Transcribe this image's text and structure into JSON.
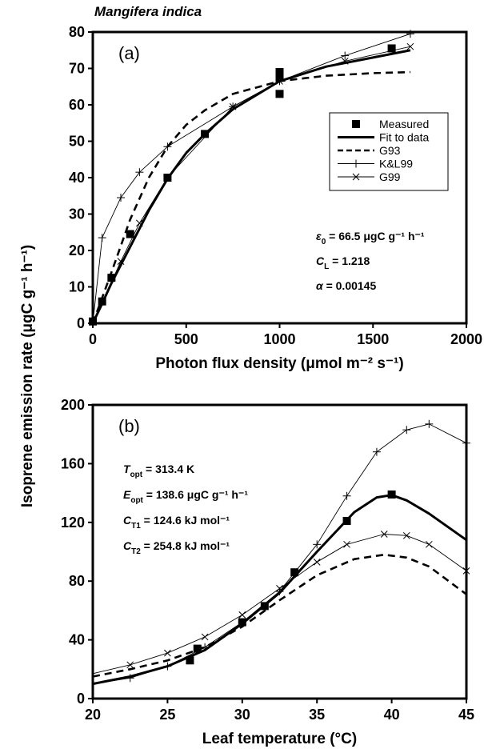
{
  "figure": {
    "species": "Mangifera indica",
    "ylabel": "Isoprene emission rate (μgC g⁻¹ h⁻¹)"
  },
  "chart_data": [
    {
      "type": "line",
      "panel_label": "(a)",
      "xlabel": "Photon flux density (μmol m⁻² s⁻¹)",
      "xlim": [
        0,
        2000
      ],
      "ylim": [
        0,
        80
      ],
      "xticks": [
        "0",
        "500",
        "1000",
        "1500",
        "2000"
      ],
      "yticks": [
        "0",
        "10",
        "20",
        "30",
        "40",
        "50",
        "60",
        "70",
        "80"
      ],
      "grid": false,
      "legend_position": "right",
      "series": [
        {
          "name": "Measured",
          "style": "squares",
          "x": [
            0,
            50,
            100,
            200,
            400,
            600,
            1000,
            1000,
            1000,
            1600
          ],
          "y": [
            0.5,
            6,
            12.5,
            24.5,
            40,
            52,
            69,
            67.5,
            63,
            75.5
          ]
        },
        {
          "name": "Fit to data",
          "style": "thick",
          "x": [
            0,
            50,
            100,
            200,
            300,
            400,
            500,
            600,
            750,
            1000,
            1250,
            1500,
            1700
          ],
          "y": [
            0,
            5.4,
            11,
            21,
            31,
            39.7,
            46.8,
            52,
            58.8,
            66.5,
            70.5,
            73,
            75
          ]
        },
        {
          "name": "G93",
          "style": "dashed",
          "x": [
            0,
            50,
            100,
            200,
            300,
            400,
            500,
            600,
            750,
            1000,
            1250,
            1500,
            1700
          ],
          "y": [
            0,
            7,
            14,
            28.5,
            40,
            48.5,
            54.5,
            58.5,
            63,
            66.5,
            68,
            68.7,
            69
          ]
        },
        {
          "name": "K&L99",
          "style": "thin-plus",
          "x": [
            0,
            50,
            150,
            250,
            400,
            750,
            1000,
            1350,
            1700
          ],
          "y": [
            0,
            23.5,
            34.5,
            41.5,
            48.5,
            59.5,
            66.5,
            73.5,
            79.5
          ]
        },
        {
          "name": "G99",
          "style": "thin-x",
          "x": [
            0,
            150,
            250,
            400,
            750,
            1000,
            1350,
            1700
          ],
          "y": [
            0,
            17,
            27.5,
            40,
            59.5,
            66.5,
            72,
            76
          ]
        }
      ],
      "annotations": [
        {
          "lead": "ε",
          "sub": "0",
          "rest": " = 66.5 μgC g⁻¹ h⁻¹"
        },
        {
          "lead": "C",
          "sub": "L",
          "rest": " = 1.218"
        },
        {
          "lead": "α",
          "sub": "",
          "rest": " = 0.00145"
        }
      ]
    },
    {
      "type": "line",
      "panel_label": "(b)",
      "xlabel": "Leaf temperature (°C)",
      "xlim": [
        20,
        45
      ],
      "ylim": [
        0,
        200
      ],
      "xticks": [
        "20",
        "25",
        "30",
        "35",
        "40",
        "45"
      ],
      "yticks": [
        "0",
        "40",
        "80",
        "120",
        "160",
        "200"
      ],
      "grid": false,
      "series": [
        {
          "name": "Measured",
          "style": "squares",
          "x": [
            26.5,
            27,
            30,
            31.5,
            33.5,
            37,
            40
          ],
          "y": [
            26,
            34,
            52,
            63,
            86,
            121,
            139
          ]
        },
        {
          "name": "Fit to data",
          "style": "thick",
          "x": [
            20,
            22.5,
            25,
            27.5,
            30,
            32.5,
            35,
            37.5,
            39,
            40,
            41,
            42.5,
            45
          ],
          "y": [
            10,
            15,
            22,
            33,
            51,
            72,
            100,
            127,
            137,
            138.6,
            135,
            126,
            108
          ]
        },
        {
          "name": "G93",
          "style": "dashed",
          "x": [
            20,
            22.5,
            25,
            27.5,
            30,
            32.5,
            35,
            37.5,
            39.5,
            41,
            42.5,
            45
          ],
          "y": [
            15,
            20,
            26,
            35,
            49,
            67,
            84,
            95,
            98,
            96,
            90,
            71
          ]
        },
        {
          "name": "K&L99",
          "style": "thin-plus",
          "x": [
            20,
            22.5,
            25,
            27.5,
            30,
            32.5,
            35,
            37,
            39,
            41,
            42.5,
            45
          ],
          "y": [
            10,
            14,
            22,
            35,
            52,
            73,
            105,
            138,
            168,
            183,
            187,
            174
          ]
        },
        {
          "name": "G99",
          "style": "thin-x",
          "x": [
            20,
            22.5,
            25,
            27.5,
            30,
            32.5,
            35,
            37,
            39.5,
            41,
            42.5,
            45
          ],
          "y": [
            17,
            23,
            31,
            42,
            57,
            75,
            93,
            105,
            112,
            111,
            105,
            87
          ]
        }
      ],
      "annotations": [
        {
          "lead": "T",
          "sub": "opt",
          "rest": " = 313.4 K"
        },
        {
          "lead": "E",
          "sub": "opt",
          "rest": " = 138.6 μgC g⁻¹ h⁻¹"
        },
        {
          "lead": "C",
          "sub": "T1",
          "rest": " = 124.6 kJ mol⁻¹"
        },
        {
          "lead": "C",
          "sub": "T2",
          "rest": " = 254.8 kJ mol⁻¹"
        }
      ]
    }
  ]
}
